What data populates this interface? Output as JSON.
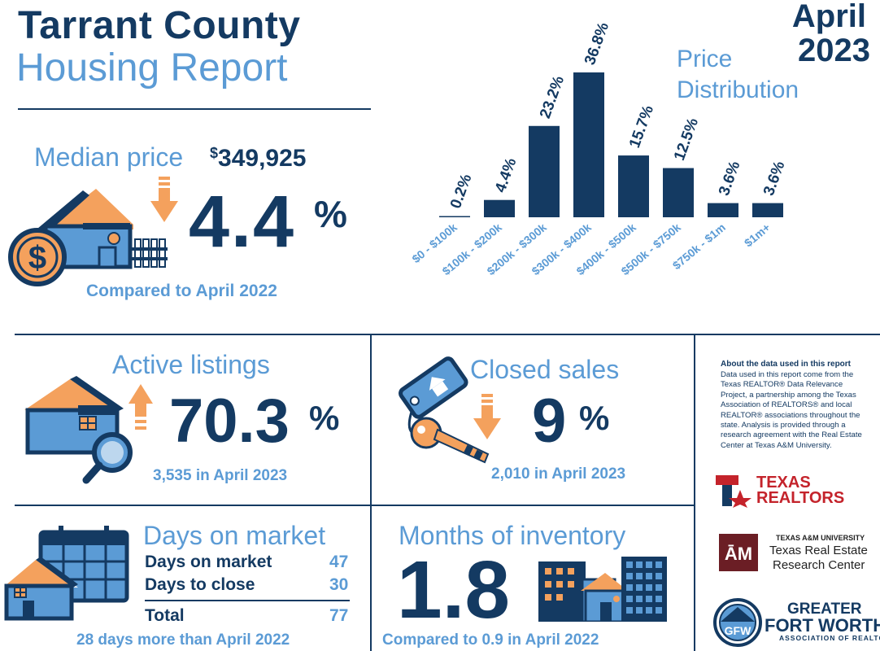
{
  "header": {
    "title_line1": "Tarrant County",
    "title_line2": "Housing Report",
    "month": "April",
    "year": "2023"
  },
  "colors": {
    "navy": "#143a62",
    "light_blue": "#5b9bd5",
    "orange": "#f4a15d"
  },
  "median": {
    "label": "Median price",
    "currency": "$",
    "value": "349,925",
    "change": "4.4",
    "change_sign": "%",
    "direction": "down",
    "compare": "Compared to April 2022"
  },
  "chart_data": {
    "type": "bar",
    "title": "Price Distribution",
    "title_line1": "Price",
    "title_line2": "Distribution",
    "categories": [
      "$0 - $100k",
      "$100k - $200k",
      "$200k - $300k",
      "$300k - $400k",
      "$400k - $500k",
      "$500k - $750k",
      "$750k - $1m",
      "$1m+"
    ],
    "values": [
      0.2,
      4.4,
      23.2,
      36.8,
      15.7,
      12.5,
      3.6,
      3.6
    ],
    "value_labels": [
      "0.2%",
      "4.4%",
      "23.2%",
      "36.8%",
      "15.7%",
      "12.5%",
      "3.6%",
      "3.6%"
    ],
    "ylim": [
      0,
      36.8
    ],
    "grid": false,
    "unit": "%"
  },
  "active_listings": {
    "label": "Active listings",
    "change": "70.3",
    "change_sign": "%",
    "direction": "up",
    "sub": "3,535 in April 2023"
  },
  "closed_sales": {
    "label": "Closed sales",
    "change": "9",
    "change_sign": "%",
    "direction": "down",
    "sub": "2,010 in April 2023"
  },
  "about": {
    "title": "About the data used in this report",
    "body": "Data used in this report come from the Texas REALTOR® Data Relevance Project, a partnership among the Texas Association of REALTORS® and local REALTOR® associations throughout the state. Analysis is provided through a research agreement with the Real Estate Center at Texas A&M University."
  },
  "days_on_market": {
    "label": "Days on market",
    "rows": [
      {
        "label": "Days on market",
        "value": "47"
      },
      {
        "label": "Days to close",
        "value": "30"
      }
    ],
    "total_label": "Total",
    "total_value": "77",
    "sub": "28 days more than April 2022"
  },
  "months_inventory": {
    "label": "Months of inventory",
    "value": "1.8",
    "sub": "Compared to 0.9 in April 2022"
  },
  "logos": {
    "texas_realtors_line1": "TEXAS",
    "texas_realtors_line2": "REALTORS",
    "tamu_line1": "TEXAS A&M UNIVERSITY",
    "tamu_line2": "Texas Real Estate",
    "tamu_line3": "Research Center",
    "gfw_line1": "GREATER",
    "gfw_line2": "FORT WORTH",
    "gfw_line3": "ASSOCIATION OF REALTORS®",
    "gfw_monogram": "GFW"
  }
}
